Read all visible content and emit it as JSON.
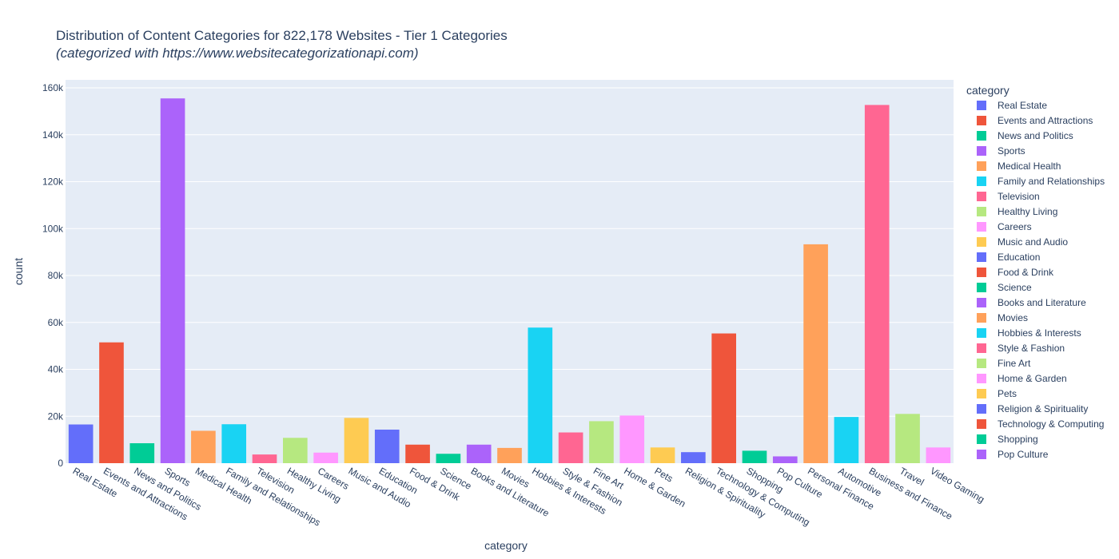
{
  "chart_data": {
    "type": "bar",
    "title": "Distribution of Content Categories for 822,178 Websites - Tier 1 Categories",
    "subtitle": "(categorized with https://www.websitecategorizationapi.com)",
    "xlabel": "category",
    "ylabel": "count",
    "legend_title": "category",
    "legend_position": "right",
    "ylim": [
      0,
      160000
    ],
    "yticks": [
      0,
      20000,
      40000,
      60000,
      80000,
      100000,
      120000,
      140000,
      160000
    ],
    "ytick_labels": [
      "0",
      "20k",
      "40k",
      "60k",
      "80k",
      "100k",
      "120k",
      "140k",
      "160k"
    ],
    "grid": true,
    "categories": [
      "Real Estate",
      "Events and Attractions",
      "News and Politics",
      "Sports",
      "Medical Health",
      "Family and Relationships",
      "Television",
      "Healthy Living",
      "Careers",
      "Music and Audio",
      "Education",
      "Food & Drink",
      "Science",
      "Books and Literature",
      "Movies",
      "Hobbies & Interests",
      "Style & Fashion",
      "Fine Art",
      "Home & Garden",
      "Pets",
      "Religion & Spirituality",
      "Technology & Computing",
      "Shopping",
      "Pop Culture",
      "Personal Finance",
      "Automotive",
      "Business and Finance",
      "Travel",
      "Video Gaming"
    ],
    "values": [
      16500,
      51500,
      8500,
      155500,
      13800,
      16600,
      3700,
      10800,
      4500,
      19300,
      14300,
      7900,
      4000,
      7900,
      6500,
      57800,
      13100,
      17900,
      20300,
      6700,
      4700,
      55300,
      5300,
      2900,
      93300,
      19700,
      152700,
      21000,
      6700
    ],
    "colors": [
      "#636efa",
      "#EF553B",
      "#00cc96",
      "#ab63fa",
      "#FFA15A",
      "#19d3f3",
      "#FF6692",
      "#B6E880",
      "#FF97FF",
      "#FECB52",
      "#636efa",
      "#EF553B",
      "#00cc96",
      "#ab63fa",
      "#FFA15A",
      "#19d3f3",
      "#FF6692",
      "#B6E880",
      "#FF97FF",
      "#FECB52",
      "#636efa",
      "#EF553B",
      "#00cc96",
      "#ab63fa",
      "#FFA15A",
      "#19d3f3",
      "#FF6692",
      "#B6E880",
      "#FF97FF"
    ],
    "legend_count": 24,
    "plot_background": "#E5ECF6"
  }
}
